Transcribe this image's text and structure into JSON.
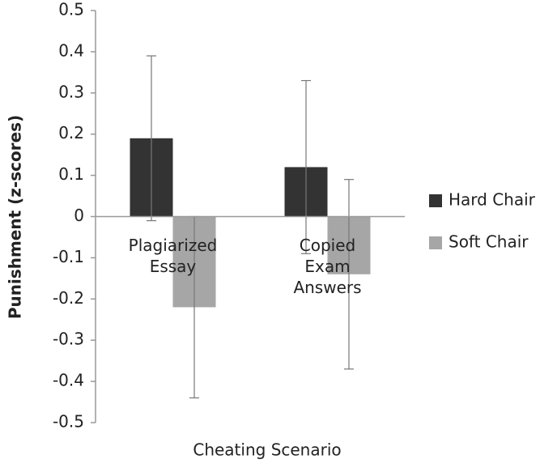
{
  "chart_data": {
    "type": "bar",
    "categories": [
      "Plagiarized Essay",
      "Copied Exam Answers"
    ],
    "series": [
      {
        "name": "Hard Chair",
        "color": "#333333",
        "values": [
          0.19,
          0.12
        ],
        "errors": [
          0.2,
          0.21
        ]
      },
      {
        "name": "Soft Chair",
        "color": "#a6a6a6",
        "values": [
          -0.22,
          -0.14
        ],
        "errors": [
          0.22,
          0.23
        ]
      }
    ],
    "ylim": [
      -0.5,
      0.5
    ],
    "yticks": [
      -0.5,
      -0.4,
      -0.3,
      -0.2,
      -0.1,
      0,
      0.1,
      0.2,
      0.3,
      0.4,
      0.5
    ],
    "y_label": "Punishment  (z-scores)",
    "x_label": "Cheating Scenario",
    "legend": "right"
  }
}
